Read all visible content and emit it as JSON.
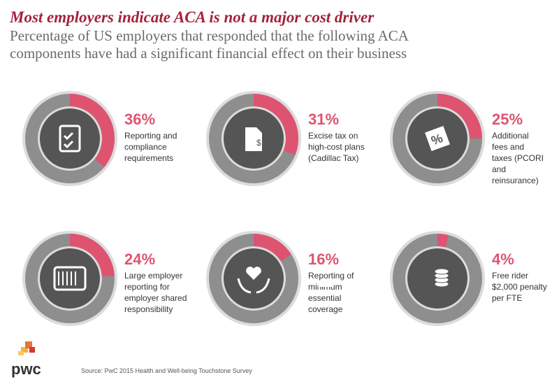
{
  "chart_data": {
    "type": "donut",
    "title": "Most employers indicate ACA is not a major cost driver",
    "subtitle": [
      "Percentage of US employers that responded that the following ACA",
      "components have had a significant financial effect on their business"
    ],
    "categories": [
      [
        "Reporting and",
        "compliance",
        "requirements"
      ],
      [
        "Excise tax on",
        "high-cost plans",
        "(Cadillac Tax)"
      ],
      [
        "Additional",
        "fees and",
        "taxes (PCORI",
        "and",
        "reinsurance)"
      ],
      [
        "Large employer",
        "reporting for",
        "employer shared",
        "responsibility"
      ],
      [
        "Reporting of",
        "minimum",
        "essential",
        "coverage"
      ],
      [
        "Free rider",
        "$2,000 penalty",
        "per FTE"
      ]
    ],
    "values": [
      36,
      31,
      25,
      24,
      16,
      4
    ],
    "value_labels": [
      "36%",
      "31%",
      "25%",
      "24%",
      "16%",
      "4%"
    ],
    "color": "#de5470",
    "rest_color": "#8e8e8e",
    "source": "Source:  PwC 2015 Health and Well-being Touchstone Survey",
    "logo": "pwc"
  }
}
